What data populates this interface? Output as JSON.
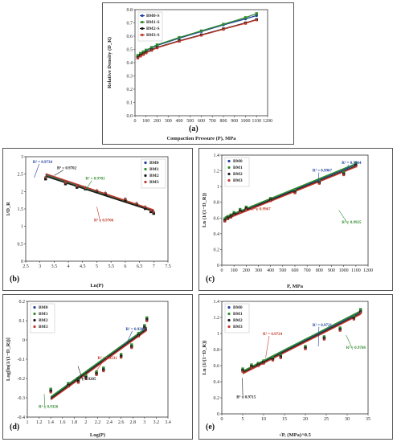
{
  "colors": {
    "BM0": "#1f3f9e",
    "BM1": "#2e8b2e",
    "BM2": "#1a1a1a",
    "BM3": "#c0392b"
  },
  "chart_data": [
    {
      "panel_label": "(a)",
      "type": "line",
      "xlabel": "Compaction Pressure (P), MPa",
      "ylabel": "Relative Density (D_R)",
      "xlim": [
        0,
        1200
      ],
      "ylim": [
        0,
        0.8
      ],
      "xticks": [
        "0",
        "100",
        "200",
        "300",
        "400",
        "500",
        "600",
        "700",
        "800",
        "900",
        "1000",
        "1100",
        "1200"
      ],
      "yticks": [
        "0.0",
        "0.1",
        "0.2",
        "0.3",
        "0.4",
        "0.5",
        "0.6",
        "0.7",
        "0.8"
      ],
      "legend": [
        "BM0-S",
        "BM1-S",
        "BM2-S",
        "BM3-S"
      ],
      "legend_position": "top-left",
      "x": [
        25,
        50,
        75,
        100,
        150,
        200,
        400,
        600,
        800,
        1000,
        1100
      ],
      "series": [
        {
          "name": "BM0-S",
          "values": [
            0.45,
            0.465,
            0.478,
            0.49,
            0.51,
            0.53,
            0.585,
            0.635,
            0.685,
            0.73,
            0.755
          ]
        },
        {
          "name": "BM1-S",
          "values": [
            0.455,
            0.47,
            0.482,
            0.495,
            0.515,
            0.535,
            0.59,
            0.64,
            0.69,
            0.74,
            0.77
          ]
        },
        {
          "name": "BM2-S",
          "values": [
            0.44,
            0.455,
            0.466,
            0.478,
            0.497,
            0.515,
            0.565,
            0.61,
            0.655,
            0.7,
            0.725
          ]
        },
        {
          "name": "BM3-S",
          "values": [
            0.435,
            0.45,
            0.462,
            0.474,
            0.493,
            0.512,
            0.562,
            0.607,
            0.652,
            0.697,
            0.723
          ]
        }
      ]
    },
    {
      "panel_label": "(b)",
      "type": "scatter",
      "xlabel": "Ln(P)",
      "ylabel": "1/D_R",
      "xlim": [
        2.5,
        7.5
      ],
      "ylim": [
        0,
        3
      ],
      "xticks": [
        "2.5",
        "3",
        "3.5",
        "4",
        "4.5",
        "5",
        "5.5",
        "6",
        "6.5",
        "7",
        "7.5"
      ],
      "yticks": [
        "0",
        "0.5",
        "1",
        "1.5",
        "2",
        "2.5",
        "3"
      ],
      "legend": [
        "BM0",
        "BM1",
        "BM2",
        "BM3"
      ],
      "legend_position": "top-right",
      "x": [
        3.2,
        3.9,
        4.3,
        4.6,
        5.0,
        5.3,
        6.0,
        6.4,
        6.7,
        6.9,
        7.0
      ],
      "series": [
        {
          "name": "BM0",
          "values": [
            2.4,
            2.25,
            2.15,
            2.1,
            2.02,
            1.95,
            1.78,
            1.65,
            1.55,
            1.45,
            1.4
          ]
        },
        {
          "name": "BM1",
          "values": [
            2.38,
            2.23,
            2.13,
            2.08,
            2.0,
            1.93,
            1.76,
            1.63,
            1.52,
            1.43,
            1.38
          ]
        },
        {
          "name": "BM2",
          "values": [
            2.36,
            2.22,
            2.12,
            2.07,
            1.99,
            1.92,
            1.75,
            1.62,
            1.51,
            1.42,
            1.37
          ]
        },
        {
          "name": "BM3",
          "values": [
            2.42,
            2.27,
            2.17,
            2.12,
            2.04,
            1.97,
            1.8,
            1.67,
            1.57,
            1.47,
            1.42
          ]
        }
      ],
      "fits": [
        {
          "name": "BM0",
          "x": [
            3.2,
            7.0
          ],
          "y": [
            2.49,
            1.46
          ]
        },
        {
          "name": "BM1",
          "x": [
            3.2,
            7.0
          ],
          "y": [
            2.46,
            1.44
          ]
        },
        {
          "name": "BM2",
          "x": [
            3.2,
            7.0
          ],
          "y": [
            2.44,
            1.43
          ]
        },
        {
          "name": "BM3",
          "x": [
            3.2,
            7.0
          ],
          "y": [
            2.51,
            1.47
          ]
        }
      ],
      "annotations": [
        {
          "text": "R² = 0.9734",
          "series": "BM0"
        },
        {
          "text": "R² = 0.9702",
          "series": "BM2"
        },
        {
          "text": "R² = 0.9781",
          "series": "BM1"
        },
        {
          "text": "R² = 0.9706",
          "series": "BM3"
        }
      ]
    },
    {
      "panel_label": "(c)",
      "type": "scatter",
      "xlabel": "P, MPa",
      "ylabel": "Ln (1/(1−D_R))",
      "xlim": [
        0,
        1200
      ],
      "ylim": [
        0,
        1.4
      ],
      "xticks": [
        "0",
        "100",
        "200",
        "300",
        "400",
        "500",
        "600",
        "700",
        "800",
        "900",
        "1000",
        "1100",
        "1200"
      ],
      "yticks": [
        "0",
        "0.2",
        "0.4",
        "0.6",
        "0.8",
        "1",
        "1.2",
        "1.4"
      ],
      "legend": [
        "BM0",
        "BM1",
        "BM2",
        "BM3"
      ],
      "legend_position": "top-left",
      "x": [
        25,
        50,
        75,
        100,
        150,
        200,
        400,
        600,
        800,
        1000,
        1100
      ],
      "series": [
        {
          "name": "BM0",
          "values": [
            0.58,
            0.61,
            0.63,
            0.66,
            0.7,
            0.73,
            0.84,
            0.94,
            1.06,
            1.17,
            1.29
          ]
        },
        {
          "name": "BM1",
          "values": [
            0.59,
            0.62,
            0.64,
            0.67,
            0.71,
            0.74,
            0.85,
            0.95,
            1.07,
            1.18,
            1.3
          ]
        },
        {
          "name": "BM2",
          "values": [
            0.57,
            0.6,
            0.62,
            0.65,
            0.69,
            0.72,
            0.83,
            0.93,
            1.05,
            1.16,
            1.27
          ]
        },
        {
          "name": "BM3",
          "values": [
            0.56,
            0.59,
            0.61,
            0.64,
            0.68,
            0.71,
            0.82,
            0.92,
            1.04,
            1.15,
            1.26
          ]
        }
      ],
      "fits": [
        {
          "name": "BM0",
          "x": [
            25,
            1100
          ],
          "y": [
            0.6,
            1.28
          ]
        },
        {
          "name": "BM1",
          "x": [
            25,
            1100
          ],
          "y": [
            0.61,
            1.29
          ]
        },
        {
          "name": "BM2",
          "x": [
            25,
            1100
          ],
          "y": [
            0.59,
            1.26
          ]
        },
        {
          "name": "BM3",
          "x": [
            25,
            1100
          ],
          "y": [
            0.58,
            1.25
          ]
        }
      ],
      "annotations": [
        {
          "text": "R² = 0.9967",
          "series": "BM0"
        },
        {
          "text": "R² = 0.9964",
          "series": "BM0"
        },
        {
          "text": "R² = 0.9967",
          "series": "BM3"
        },
        {
          "text": "R² = 0.9925",
          "series": "BM1"
        }
      ]
    },
    {
      "panel_label": "(d)",
      "type": "scatter",
      "xlabel": "Log(P)",
      "ylabel": "Log[ln(1/(1−D_R))]",
      "xlim": [
        1,
        3.4
      ],
      "ylim": [
        -0.4,
        0.2
      ],
      "xticks": [
        "1",
        "1.2",
        "1.4",
        "1.6",
        "1.8",
        "2",
        "2.2",
        "2.4",
        "2.6",
        "2.8",
        "3",
        "3.2",
        "3.4"
      ],
      "yticks": [
        "-0.4",
        "-0.3",
        "-0.2",
        "-0.1",
        "0",
        "0.1",
        "0.2"
      ],
      "legend": [
        "BM0",
        "BM1",
        "BM2",
        "BM3"
      ],
      "legend_position": "top-left",
      "x": [
        1.4,
        1.7,
        1.87,
        2.0,
        2.18,
        2.3,
        2.6,
        2.78,
        2.9,
        3.0,
        3.04
      ],
      "series": [
        {
          "name": "BM0",
          "values": [
            -0.26,
            -0.23,
            -0.21,
            -0.19,
            -0.17,
            -0.15,
            -0.08,
            -0.03,
            0.03,
            0.07,
            0.11
          ]
        },
        {
          "name": "BM1",
          "values": [
            -0.255,
            -0.225,
            -0.205,
            -0.185,
            -0.165,
            -0.145,
            -0.075,
            -0.025,
            0.035,
            0.075,
            0.115
          ]
        },
        {
          "name": "BM2",
          "values": [
            -0.265,
            -0.235,
            -0.215,
            -0.195,
            -0.175,
            -0.155,
            -0.085,
            -0.035,
            0.025,
            0.065,
            0.105
          ]
        },
        {
          "name": "BM3",
          "values": [
            -0.27,
            -0.24,
            -0.22,
            -0.2,
            -0.18,
            -0.16,
            -0.09,
            -0.04,
            0.02,
            0.06,
            0.1
          ]
        }
      ],
      "fits": [
        {
          "name": "BM0",
          "x": [
            1.4,
            3.04
          ],
          "y": [
            -0.3,
            0.06
          ]
        },
        {
          "name": "BM1",
          "x": [
            1.4,
            3.04
          ],
          "y": [
            -0.295,
            0.065
          ]
        },
        {
          "name": "BM2",
          "x": [
            1.4,
            3.04
          ],
          "y": [
            -0.305,
            0.055
          ]
        },
        {
          "name": "BM3",
          "x": [
            1.4,
            3.04
          ],
          "y": [
            -0.31,
            0.05
          ]
        }
      ],
      "annotations": [
        {
          "text": "R² = 0.9231",
          "series": "BM3"
        },
        {
          "text": "R² = 0.9205",
          "series": "BM2"
        },
        {
          "text": "R² = 0.9208",
          "series": "BM0"
        },
        {
          "text": "R² = 0.9326",
          "series": "BM1"
        }
      ]
    },
    {
      "panel_label": "(e)",
      "type": "scatter",
      "xlabel": "√P, (MPa)^0.5",
      "ylabel": "Ln (1/(1−D_R))",
      "xlim": [
        0,
        35
      ],
      "ylim": [
        0,
        1.4
      ],
      "xticks": [
        "0",
        "5",
        "10",
        "15",
        "20",
        "25",
        "30",
        "35"
      ],
      "yticks": [
        "0",
        "0.2",
        "0.4",
        "0.6",
        "0.8",
        "1",
        "1.2",
        "1.4"
      ],
      "legend": [
        "BM0",
        "BM1",
        "BM2",
        "BM3"
      ],
      "legend_position": "top-left",
      "x": [
        5,
        7.1,
        8.7,
        10,
        12.2,
        14.1,
        20,
        24.5,
        28.3,
        31.6,
        33.2
      ],
      "series": [
        {
          "name": "BM0",
          "values": [
            0.55,
            0.6,
            0.62,
            0.65,
            0.69,
            0.72,
            0.83,
            0.95,
            1.06,
            1.2,
            1.29
          ]
        },
        {
          "name": "BM1",
          "values": [
            0.56,
            0.61,
            0.63,
            0.66,
            0.7,
            0.73,
            0.84,
            0.96,
            1.07,
            1.21,
            1.3
          ]
        },
        {
          "name": "BM2",
          "values": [
            0.54,
            0.59,
            0.61,
            0.64,
            0.68,
            0.71,
            0.82,
            0.94,
            1.05,
            1.19,
            1.27
          ]
        },
        {
          "name": "BM3",
          "values": [
            0.53,
            0.58,
            0.6,
            0.63,
            0.67,
            0.7,
            0.81,
            0.93,
            1.04,
            1.18,
            1.26
          ]
        }
      ],
      "fits": [
        {
          "name": "BM0",
          "x": [
            5,
            33.2
          ],
          "y": [
            0.52,
            1.27
          ]
        },
        {
          "name": "BM1",
          "x": [
            5,
            33.2
          ],
          "y": [
            0.53,
            1.28
          ]
        },
        {
          "name": "BM2",
          "x": [
            5,
            33.2
          ],
          "y": [
            0.51,
            1.25
          ]
        },
        {
          "name": "BM3",
          "x": [
            5,
            33.2
          ],
          "y": [
            0.5,
            1.24
          ]
        }
      ],
      "annotations": [
        {
          "text": "R² = 0.9724",
          "series": "BM3"
        },
        {
          "text": "R² = 0.9721",
          "series": "BM0"
        },
        {
          "text": "R² = 0.9715",
          "series": "BM2"
        },
        {
          "text": "R² = 0.9768",
          "series": "BM1"
        }
      ]
    }
  ]
}
